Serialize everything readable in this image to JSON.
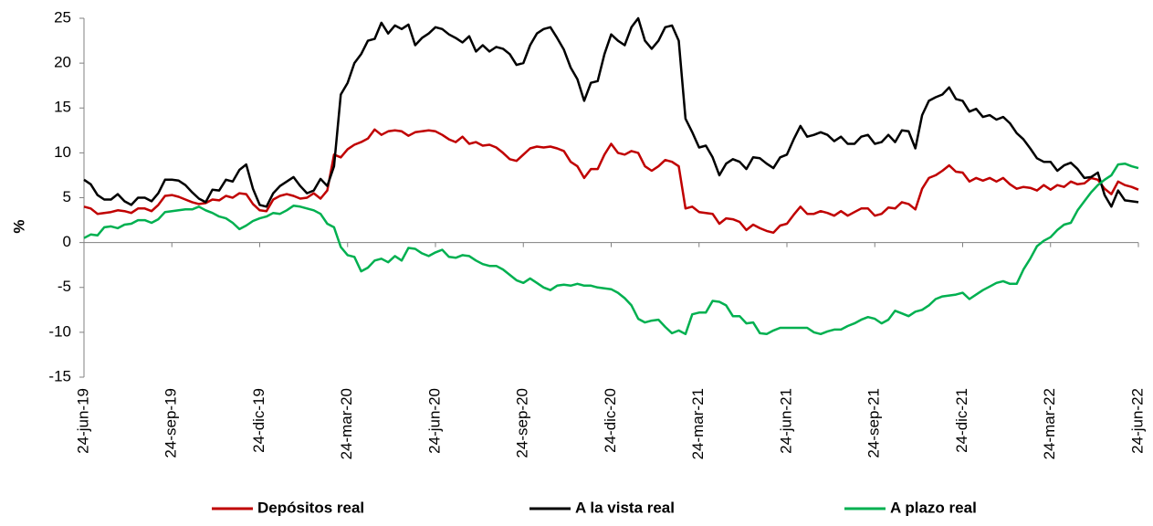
{
  "chart_data": {
    "type": "line",
    "y_label": "%",
    "categories": [
      "24-jun-19",
      null,
      null,
      null,
      null,
      null,
      null,
      null,
      null,
      null,
      null,
      null,
      null,
      "24-sep-19",
      null,
      null,
      null,
      null,
      null,
      null,
      null,
      null,
      null,
      null,
      null,
      null,
      "24-dic-19",
      null,
      null,
      null,
      null,
      null,
      null,
      null,
      null,
      null,
      null,
      null,
      null,
      "24-mar-20",
      null,
      null,
      null,
      null,
      null,
      null,
      null,
      null,
      null,
      null,
      null,
      null,
      "24-jun-20",
      null,
      null,
      null,
      null,
      null,
      null,
      null,
      null,
      null,
      null,
      null,
      null,
      "24-sep-20",
      null,
      null,
      null,
      null,
      null,
      null,
      null,
      null,
      null,
      null,
      null,
      null,
      "24-dic-20",
      null,
      null,
      null,
      null,
      null,
      null,
      null,
      null,
      null,
      null,
      null,
      null,
      "24-mar-21",
      null,
      null,
      null,
      null,
      null,
      null,
      null,
      null,
      null,
      null,
      null,
      null,
      "24-jun-21",
      null,
      null,
      null,
      null,
      null,
      null,
      null,
      null,
      null,
      null,
      null,
      null,
      "24-sep-21",
      null,
      null,
      null,
      null,
      null,
      null,
      null,
      null,
      null,
      null,
      null,
      null,
      "24-dic-21",
      null,
      null,
      null,
      null,
      null,
      null,
      null,
      null,
      null,
      null,
      null,
      null,
      "24-mar-22",
      null,
      null,
      null,
      null,
      null,
      null,
      null,
      null,
      null,
      null,
      null,
      null,
      "24-jun-22"
    ],
    "series": [
      {
        "name": "Depósitos real",
        "color": "#c00000",
        "values": [
          4,
          3.8,
          3.2,
          3.3,
          3.4,
          3.6,
          3.5,
          3.3,
          3.8,
          3.8,
          3.5,
          4.2,
          5.2,
          5.3,
          5.1,
          4.8,
          4.5,
          4.3,
          4.4,
          4.8,
          4.7,
          5.2,
          5,
          5.5,
          5.4,
          4.3,
          3.6,
          3.5,
          4.8,
          5.2,
          5.4,
          5.2,
          4.9,
          5,
          5.5,
          4.9,
          5.8,
          9.8,
          9.5,
          10.4,
          10.9,
          11.2,
          11.6,
          12.6,
          12,
          12.4,
          12.5,
          12.4,
          11.9,
          12.3,
          12.4,
          12.5,
          12.4,
          12,
          11.5,
          11.2,
          11.8,
          11,
          11.2,
          10.8,
          10.9,
          10.6,
          10,
          9.3,
          9.1,
          9.8,
          10.5,
          10.7,
          10.6,
          10.7,
          10.5,
          10.2,
          9,
          8.5,
          7.2,
          8.2,
          8.2,
          9.8,
          11,
          10,
          9.8,
          10.2,
          10,
          8.5,
          8,
          8.5,
          9.2,
          9,
          8.5,
          3.8,
          4,
          3.4,
          3.3,
          3.2,
          2.1,
          2.7,
          2.6,
          2.3,
          1.4,
          2,
          1.6,
          1.3,
          1.1,
          1.9,
          2.1,
          3.1,
          4,
          3.2,
          3.2,
          3.5,
          3.3,
          3,
          3.5,
          3,
          3.4,
          3.8,
          3.8,
          3,
          3.2,
          3.9,
          3.8,
          4.5,
          4.3,
          3.7,
          6,
          7.2,
          7.5,
          8,
          8.6,
          7.9,
          7.8,
          6.8,
          7.2,
          6.9,
          7.2,
          6.8,
          7.2,
          6.5,
          6,
          6.2,
          6.1,
          5.8,
          6.4,
          5.9,
          6.4,
          6.2,
          6.8,
          6.5,
          6.6,
          7.2,
          7,
          6,
          5.4,
          6.8,
          6.4,
          6.2,
          5.9
        ]
      },
      {
        "name": "A la vista real",
        "color": "#000000",
        "values": [
          7,
          6.5,
          5.3,
          4.8,
          4.8,
          5.4,
          4.6,
          4.2,
          5,
          5,
          4.6,
          5.5,
          7,
          7,
          6.9,
          6.4,
          5.6,
          4.9,
          4.5,
          5.9,
          5.8,
          7,
          6.8,
          8.1,
          8.7,
          6,
          4.2,
          4,
          5.5,
          6.3,
          6.8,
          7.3,
          6.3,
          5.5,
          5.8,
          7.1,
          6.3,
          8.5,
          16.5,
          17.8,
          20,
          21,
          22.5,
          22.7,
          24.5,
          23.3,
          24.2,
          23.8,
          24.3,
          22,
          22.8,
          23.3,
          24,
          23.8,
          23.2,
          22.8,
          22.3,
          23,
          21.3,
          22,
          21.3,
          21.8,
          21.6,
          21,
          19.8,
          20,
          22,
          23.3,
          23.8,
          24,
          22.8,
          21.5,
          19.5,
          18.2,
          15.8,
          17.8,
          18,
          21,
          23.2,
          22.5,
          22,
          24,
          25,
          22.5,
          21.6,
          22.5,
          24,
          24.2,
          22.5,
          13.8,
          12.3,
          10.6,
          10.8,
          9.5,
          7.5,
          8.8,
          9.3,
          9,
          8.2,
          9.5,
          9.4,
          8.8,
          8.3,
          9.5,
          9.8,
          11.5,
          13,
          11.8,
          12,
          12.3,
          12,
          11.3,
          11.8,
          11,
          11,
          11.8,
          12,
          11,
          11.2,
          12,
          11.2,
          12.5,
          12.4,
          10.5,
          14.2,
          15.8,
          16.2,
          16.5,
          17.3,
          16,
          15.8,
          14.6,
          14.9,
          14,
          14.2,
          13.7,
          14,
          13.3,
          12.2,
          11.5,
          10.5,
          9.4,
          9,
          9,
          8,
          8.6,
          8.9,
          8.2,
          7.2,
          7.3,
          7.8,
          5.3,
          4,
          5.8,
          4.7,
          4.6,
          4.5
        ]
      },
      {
        "name": "A plazo real",
        "color": "#00b050",
        "values": [
          0.5,
          0.9,
          0.8,
          1.7,
          1.8,
          1.6,
          2,
          2.1,
          2.5,
          2.5,
          2.2,
          2.6,
          3.4,
          3.5,
          3.6,
          3.7,
          3.7,
          4,
          3.6,
          3.3,
          2.9,
          2.7,
          2.2,
          1.5,
          1.9,
          2.4,
          2.7,
          2.9,
          3.3,
          3.2,
          3.6,
          4.1,
          4,
          3.8,
          3.6,
          3.2,
          2.1,
          1.7,
          -0.5,
          -1.4,
          -1.6,
          -3.2,
          -2.8,
          -2,
          -1.8,
          -2.2,
          -1.5,
          -2,
          -0.6,
          -0.7,
          -1.2,
          -1.5,
          -1.1,
          -0.8,
          -1.6,
          -1.7,
          -1.4,
          -1.5,
          -2,
          -2.4,
          -2.6,
          -2.6,
          -3,
          -3.6,
          -4.2,
          -4.5,
          -4,
          -4.5,
          -5,
          -5.3,
          -4.8,
          -4.7,
          -4.8,
          -4.6,
          -4.8,
          -4.8,
          -5,
          -5.1,
          -5.2,
          -5.6,
          -6.2,
          -7,
          -8.5,
          -8.9,
          -8.7,
          -8.6,
          -9.4,
          -10.1,
          -9.8,
          -10.2,
          -8,
          -7.8,
          -7.8,
          -6.5,
          -6.6,
          -7,
          -8.2,
          -8.2,
          -9,
          -8.9,
          -10.1,
          -10.2,
          -9.8,
          -9.5,
          -9.5,
          -9.5,
          -9.5,
          -9.5,
          -10,
          -10.2,
          -9.9,
          -9.7,
          -9.7,
          -9.3,
          -9,
          -8.6,
          -8.3,
          -8.5,
          -9,
          -8.6,
          -7.6,
          -7.9,
          -8.2,
          -7.7,
          -7.5,
          -7,
          -6.3,
          -6,
          -5.9,
          -5.8,
          -5.6,
          -6.3,
          -5.8,
          -5.3,
          -4.9,
          -4.5,
          -4.3,
          -4.6,
          -4.6,
          -3,
          -1.8,
          -0.4,
          0.2,
          0.6,
          1.4,
          2,
          2.2,
          3.6,
          4.6,
          5.6,
          6.4,
          7,
          7.5,
          8.7,
          8.8,
          8.5,
          8.3
        ]
      }
    ],
    "ylim": [
      -15,
      25
    ],
    "yticks": [
      -15,
      -10,
      -5,
      0,
      5,
      10,
      15,
      20,
      25
    ],
    "legend": "bottom"
  }
}
